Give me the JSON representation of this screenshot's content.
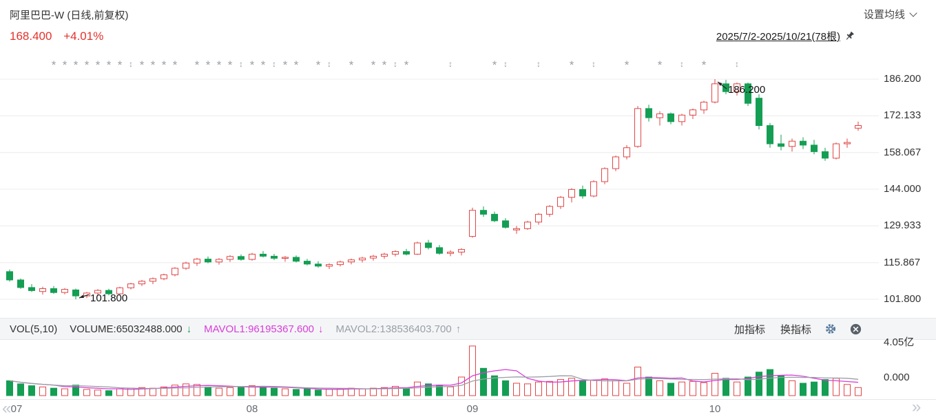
{
  "header": {
    "title": "阿里巴巴-W (日线,前复权)",
    "ma_settings_label": "设置均线",
    "last_price": "168.400",
    "change_pct": "+4.01%",
    "date_range": "2025/7/2-2025/10/21(78根)"
  },
  "price_axis_labels": [
    "186.200",
    "172.133",
    "158.067",
    "144.000",
    "129.933",
    "115.867",
    "101.800"
  ],
  "volume_pane": {
    "indicator": "VOL(5,10)",
    "volume_text": "VOLUME:65032488.000",
    "volume_dir": "↓",
    "mavol1_text": "MAVOL1:96195367.600",
    "mavol1_dir": "↓",
    "mavol2_text": "MAVOL2:138536403.700",
    "mavol2_dir": "↑",
    "add_indicator": "加指标",
    "switch_indicator": "换指标",
    "axis_top": "4.05亿",
    "axis_zero": "0.000"
  },
  "x_axis_months": [
    {
      "label": "07",
      "i": 0
    },
    {
      "label": "08",
      "i": 22
    },
    {
      "label": "09",
      "i": 42
    },
    {
      "label": "10",
      "i": 64
    }
  ],
  "nav": {
    "prev": "«",
    "next": "»"
  },
  "annotations": [
    {
      "text": "186.200",
      "bar": 64,
      "price": 186.2,
      "kind": "high"
    },
    {
      "text": "101.800",
      "bar": 6,
      "price": 101.8,
      "kind": "low"
    }
  ],
  "colors": {
    "up": "#e24545",
    "down": "#149e53",
    "price_text": "#e5312b",
    "mavol1": "#d93cd9",
    "mavol2": "#9aa0a6",
    "marker": "#9aa0a6",
    "grid": "#ececec"
  },
  "chart_data": {
    "type": "candlestick_with_volume",
    "symbol": "阿里巴巴-W",
    "period": "日线",
    "adjustment": "前复权",
    "range": "2025/7/2-2025/10/21",
    "bar_count": 78,
    "price_axis_values": [
      186.2,
      172.133,
      158.067,
      144.0,
      129.933,
      115.867,
      101.8
    ],
    "volume_axis_max": 405000000,
    "last_close": 168.4,
    "last_change_pct": 4.01,
    "volume_last": 65032488.0,
    "mavol1_last": 96195367.6,
    "mavol2_last": 138536403.7,
    "high_annotation": 186.2,
    "low_annotation": 101.8,
    "candles": [
      [
        112.4,
        113.2,
        108.6,
        109.2
      ],
      [
        109.2,
        109.8,
        105.8,
        106.3
      ],
      [
        106.3,
        107.6,
        104.6,
        105.1
      ],
      [
        104.8,
        106.6,
        103.6,
        105.9
      ],
      [
        105.9,
        106.9,
        103.9,
        104.4
      ],
      [
        104.4,
        106.1,
        103.7,
        105.6
      ],
      [
        105.4,
        105.9,
        101.8,
        103.1
      ],
      [
        103.1,
        104.6,
        102.3,
        104.2
      ],
      [
        104.2,
        105.7,
        103.1,
        105.2
      ],
      [
        105.2,
        105.8,
        103.3,
        103.9
      ],
      [
        103.9,
        106.6,
        103.6,
        106.2
      ],
      [
        106.2,
        108.1,
        105.6,
        107.7
      ],
      [
        107.7,
        109.2,
        106.9,
        108.7
      ],
      [
        108.7,
        110.2,
        107.6,
        109.7
      ],
      [
        109.7,
        111.6,
        109.1,
        111.2
      ],
      [
        111.2,
        114.1,
        110.6,
        113.7
      ],
      [
        113.7,
        116.2,
        113.1,
        115.7
      ],
      [
        115.7,
        117.7,
        114.6,
        117.2
      ],
      [
        117.2,
        118.2,
        115.6,
        116.1
      ],
      [
        116.1,
        117.6,
        115.1,
        117.1
      ],
      [
        117.1,
        118.7,
        116.1,
        118.2
      ],
      [
        118.2,
        119.0,
        116.6,
        117.1
      ],
      [
        117.1,
        119.6,
        116.6,
        119.1
      ],
      [
        119.1,
        120.3,
        117.8,
        118.3
      ],
      [
        118.3,
        119.2,
        116.8,
        117.5
      ],
      [
        117.5,
        118.4,
        116.2,
        117.9
      ],
      [
        117.9,
        118.6,
        115.9,
        116.4
      ],
      [
        116.4,
        117.3,
        114.8,
        115.3
      ],
      [
        115.3,
        116.4,
        113.9,
        114.5
      ],
      [
        114.5,
        115.6,
        113.4,
        115.1
      ],
      [
        115.1,
        116.6,
        114.4,
        116.1
      ],
      [
        116.1,
        117.4,
        115.2,
        116.9
      ],
      [
        116.9,
        118.1,
        115.9,
        117.6
      ],
      [
        117.6,
        118.8,
        116.6,
        118.3
      ],
      [
        118.3,
        119.6,
        117.3,
        119.1
      ],
      [
        119.1,
        120.6,
        118.2,
        120.1
      ],
      [
        120.1,
        121.1,
        118.6,
        119.1
      ],
      [
        119.1,
        123.9,
        118.8,
        123.4
      ],
      [
        123.4,
        124.6,
        120.9,
        121.6
      ],
      [
        121.6,
        122.6,
        118.9,
        119.4
      ],
      [
        119.4,
        120.6,
        118.3,
        119.9
      ],
      [
        119.9,
        121.4,
        118.6,
        120.9
      ],
      [
        125.9,
        136.9,
        125.4,
        135.9
      ],
      [
        135.9,
        137.4,
        133.4,
        134.4
      ],
      [
        134.4,
        135.4,
        131.4,
        131.9
      ],
      [
        131.9,
        132.9,
        128.9,
        129.4
      ],
      [
        128.4,
        129.9,
        126.9,
        128.9
      ],
      [
        128.9,
        131.9,
        128.4,
        131.4
      ],
      [
        131.4,
        134.9,
        130.4,
        134.4
      ],
      [
        134.4,
        137.9,
        133.4,
        137.4
      ],
      [
        137.4,
        141.4,
        136.4,
        140.9
      ],
      [
        140.9,
        144.4,
        138.9,
        143.9
      ],
      [
        143.9,
        145.4,
        140.4,
        141.4
      ],
      [
        141.4,
        147.4,
        140.9,
        146.9
      ],
      [
        146.9,
        152.4,
        145.9,
        151.9
      ],
      [
        151.9,
        156.9,
        150.9,
        156.4
      ],
      [
        156.4,
        160.9,
        155.4,
        159.9
      ],
      [
        160.4,
        175.9,
        159.9,
        174.9
      ],
      [
        174.9,
        176.4,
        169.9,
        171.4
      ],
      [
        171.4,
        173.9,
        168.4,
        172.9
      ],
      [
        172.9,
        173.4,
        168.9,
        169.9
      ],
      [
        169.9,
        172.9,
        168.4,
        172.4
      ],
      [
        172.4,
        174.9,
        170.9,
        174.4
      ],
      [
        174.4,
        177.9,
        172.9,
        177.4
      ],
      [
        177.4,
        186.2,
        176.9,
        184.4
      ],
      [
        184.4,
        185.9,
        180.4,
        181.4
      ],
      [
        181.4,
        184.9,
        179.9,
        184.4
      ],
      [
        184.4,
        184.9,
        175.9,
        176.9
      ],
      [
        178.9,
        180.4,
        166.9,
        168.4
      ],
      [
        168.4,
        169.4,
        159.9,
        161.4
      ],
      [
        161.4,
        164.9,
        158.9,
        160.4
      ],
      [
        160.4,
        163.4,
        158.4,
        162.4
      ],
      [
        162.4,
        163.9,
        159.4,
        160.9
      ],
      [
        160.9,
        162.9,
        157.4,
        158.4
      ],
      [
        158.4,
        159.9,
        154.9,
        155.9
      ],
      [
        155.9,
        161.9,
        155.4,
        161.4
      ],
      [
        161.4,
        163.4,
        159.9,
        161.9
      ],
      [
        167.4,
        169.9,
        166.4,
        168.4
      ]
    ],
    "volumes_millions": [
      120,
      95,
      80,
      70,
      60,
      55,
      85,
      50,
      45,
      40,
      55,
      60,
      65,
      60,
      70,
      85,
      95,
      90,
      70,
      60,
      65,
      70,
      80,
      70,
      60,
      55,
      50,
      55,
      45,
      50,
      55,
      60,
      55,
      60,
      65,
      75,
      60,
      110,
      95,
      85,
      70,
      150,
      400,
      220,
      160,
      120,
      100,
      95,
      110,
      115,
      130,
      140,
      120,
      125,
      135,
      120,
      100,
      230,
      150,
      120,
      100,
      110,
      115,
      105,
      180,
      140,
      110,
      150,
      190,
      210,
      160,
      120,
      100,
      110,
      130,
      140,
      90,
      65.03
    ],
    "markers": [
      {
        "i": 4,
        "t": "s"
      },
      {
        "i": 5,
        "t": "s"
      },
      {
        "i": 6,
        "t": "s"
      },
      {
        "i": 7,
        "t": "s"
      },
      {
        "i": 8,
        "t": "s"
      },
      {
        "i": 9,
        "t": "s"
      },
      {
        "i": 10,
        "t": "s"
      },
      {
        "i": 11,
        "t": "u"
      },
      {
        "i": 12,
        "t": "s"
      },
      {
        "i": 13,
        "t": "s"
      },
      {
        "i": 14,
        "t": "s"
      },
      {
        "i": 15,
        "t": "s"
      },
      {
        "i": 17,
        "t": "s"
      },
      {
        "i": 18,
        "t": "s"
      },
      {
        "i": 19,
        "t": "s"
      },
      {
        "i": 20,
        "t": "s"
      },
      {
        "i": 21,
        "t": "u"
      },
      {
        "i": 22,
        "t": "s"
      },
      {
        "i": 23,
        "t": "s"
      },
      {
        "i": 24,
        "t": "u"
      },
      {
        "i": 25,
        "t": "s"
      },
      {
        "i": 26,
        "t": "s"
      },
      {
        "i": 28,
        "t": "s"
      },
      {
        "i": 29,
        "t": "u"
      },
      {
        "i": 31,
        "t": "s"
      },
      {
        "i": 33,
        "t": "s"
      },
      {
        "i": 34,
        "t": "s"
      },
      {
        "i": 35,
        "t": "u"
      },
      {
        "i": 36,
        "t": "s"
      },
      {
        "i": 40,
        "t": "u"
      },
      {
        "i": 44,
        "t": "s"
      },
      {
        "i": 45,
        "t": "u"
      },
      {
        "i": 48,
        "t": "u"
      },
      {
        "i": 51,
        "t": "s"
      },
      {
        "i": 53,
        "t": "u"
      },
      {
        "i": 56,
        "t": "s"
      },
      {
        "i": 59,
        "t": "s"
      },
      {
        "i": 61,
        "t": "u"
      },
      {
        "i": 63,
        "t": "s"
      },
      {
        "i": 66,
        "t": "u"
      }
    ]
  }
}
